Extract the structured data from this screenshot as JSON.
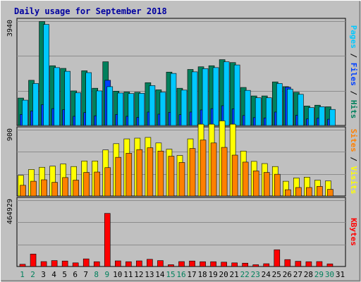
{
  "chart_data": {
    "type": "bar",
    "title": "Daily usage for September 2018",
    "days": [
      "1",
      "2",
      "3",
      "4",
      "5",
      "6",
      "7",
      "8",
      "9",
      "10",
      "11",
      "12",
      "13",
      "14",
      "15",
      "16",
      "17",
      "18",
      "19",
      "20",
      "21",
      "22",
      "23",
      "24",
      "25",
      "26",
      "27",
      "28",
      "29",
      "30",
      "31"
    ],
    "weekend_days": [
      1,
      2,
      8,
      9,
      15,
      16,
      22,
      23,
      29,
      30
    ],
    "panels": [
      {
        "id": "hits",
        "scale_label": "3940",
        "ymax": 3940,
        "right_labels": [
          {
            "text": "Pages",
            "color": "#00c8ff"
          },
          {
            "text": " / ",
            "color": "#000000"
          },
          {
            "text": "Files",
            "color": "#0040ff"
          },
          {
            "text": " / ",
            "color": "#000000"
          },
          {
            "text": "Hits",
            "color": "#00805c"
          }
        ],
        "series": [
          {
            "name": "Hits",
            "color": "#00805c",
            "values": [
              1050,
              1720,
              3940,
              2270,
              2170,
              1320,
              2080,
              1420,
              2420,
              1310,
              1280,
              1270,
              1630,
              1360,
              2030,
              1420,
              2130,
              2230,
              2270,
              2500,
              2390,
              1450,
              1130,
              1130,
              1660,
              1480,
              1270,
              750,
              780,
              720,
              0
            ]
          },
          {
            "name": "Files",
            "color": "#0040ff",
            "values": [
              430,
              560,
              800,
              650,
              610,
              360,
              500,
              380,
              1720,
              430,
              360,
              320,
              520,
              440,
              510,
              420,
              520,
              600,
              650,
              760,
              640,
              390,
              310,
              300,
              520,
              1460,
              400,
              260,
              290,
              250,
              0
            ]
          },
          {
            "name": "Pages",
            "color": "#00c8ff",
            "values": [
              970,
              1600,
              3830,
              2200,
              2060,
              1250,
              2010,
              1320,
              1480,
              1240,
              1220,
              1230,
              1520,
              1270,
              1980,
              1350,
              2040,
              2160,
              2200,
              2420,
              2300,
              1340,
              1060,
              1060,
              1600,
              1390,
              1190,
              690,
              720,
              620,
              0
            ]
          }
        ]
      },
      {
        "id": "visits",
        "scale_label": "900",
        "ymax": 900,
        "right_labels": [
          {
            "text": "Sites",
            "color": "#ff8000"
          },
          {
            "text": " / ",
            "color": "#000000"
          },
          {
            "text": "Visits",
            "color": "#ffff00"
          }
        ],
        "series": [
          {
            "name": "Visits",
            "color": "#ffff00",
            "values": [
              285,
              365,
              395,
              410,
              440,
              405,
              480,
              480,
              630,
              715,
              780,
              790,
              800,
              725,
              640,
              555,
              780,
              980,
              980,
              1025,
              980,
              615,
              475,
              445,
              405,
              205,
              250,
              260,
              220,
              210,
              0
            ]
          },
          {
            "name": "Sites",
            "color": "#ff8000",
            "values": [
              150,
              205,
              225,
              190,
              255,
              220,
              325,
              330,
              390,
              530,
              585,
              635,
              660,
              615,
              545,
              460,
              650,
              765,
              725,
              665,
              560,
              465,
              345,
              325,
              300,
              90,
              120,
              120,
              135,
              95,
              0
            ]
          }
        ]
      },
      {
        "id": "kbytes",
        "scale_label": "464929",
        "ymax": 464929,
        "right_labels": [
          {
            "text": "KBytes",
            "color": "#ff0000"
          }
        ],
        "series": [
          {
            "name": "KBytes",
            "color": "#ff0000",
            "values": [
              18000,
              90000,
              37000,
              44000,
              41000,
              28000,
              56000,
              36000,
              375000,
              42000,
              36000,
              42000,
              53000,
              44000,
              15000,
              37000,
              41000,
              36000,
              36000,
              33000,
              28000,
              26000,
              15000,
              22000,
              120000,
              51000,
              39000,
              36000,
              37000,
              21000,
              0
            ]
          }
        ]
      }
    ]
  }
}
